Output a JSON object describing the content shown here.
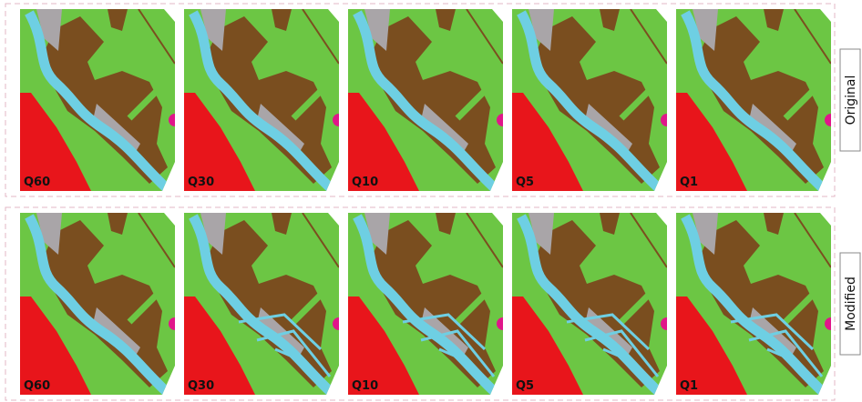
{
  "rows": [
    {
      "label": "Original",
      "panels": [
        "Q60",
        "Q30",
        "Q10",
        "Q5",
        "Q1"
      ]
    },
    {
      "label": "Modified",
      "panels": [
        "Q60",
        "Q30",
        "Q10",
        "Q5",
        "Q1"
      ]
    }
  ]
}
